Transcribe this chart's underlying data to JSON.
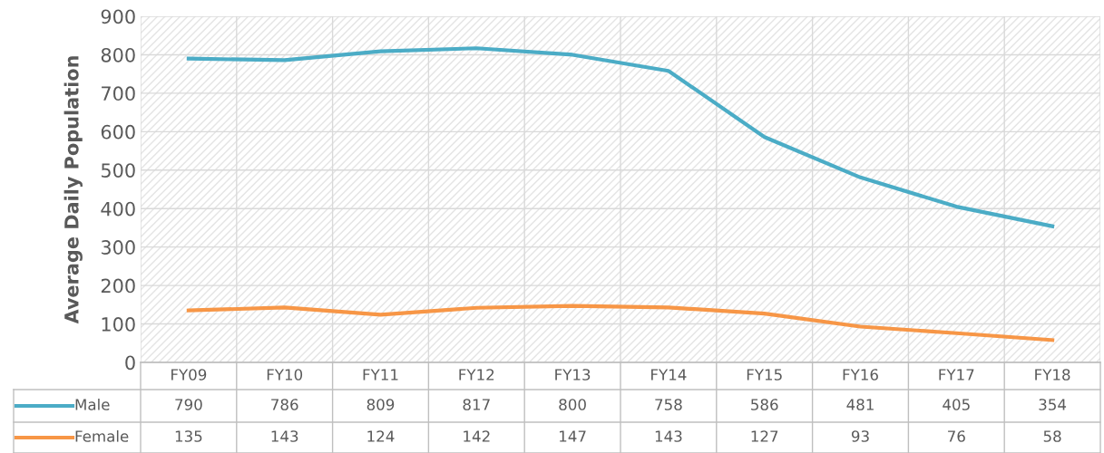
{
  "chart_data": {
    "type": "line",
    "ylabel": "Average Daily Population",
    "categories": [
      "FY09",
      "FY10",
      "FY11",
      "FY12",
      "FY13",
      "FY14",
      "FY15",
      "FY16",
      "FY17",
      "FY18"
    ],
    "series": [
      {
        "name": "Male",
        "color": "#4bacc6",
        "values": [
          790,
          786,
          809,
          817,
          800,
          758,
          586,
          481,
          405,
          354
        ]
      },
      {
        "name": "Female",
        "color": "#f79646",
        "values": [
          135,
          143,
          124,
          142,
          147,
          143,
          127,
          93,
          76,
          58
        ]
      }
    ],
    "ylim": [
      0,
      900
    ],
    "yticks": [
      0,
      100,
      200,
      300,
      400,
      500,
      600,
      700,
      800,
      900
    ],
    "grid": true,
    "legend": "bottom",
    "data_labels": true,
    "marker": "none",
    "line_style": "solid"
  }
}
